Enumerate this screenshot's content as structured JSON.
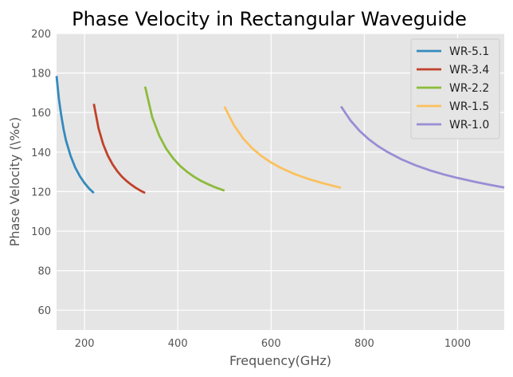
{
  "chart_data": {
    "type": "line",
    "title": "Phase Velocity in Rectangular Waveguide",
    "xlabel": "Frequency(GHz)",
    "ylabel": "Phase Velocity (\\%c)",
    "xlim": [
      140,
      1100
    ],
    "ylim": [
      50,
      200
    ],
    "xticks": [
      200,
      400,
      600,
      800,
      1000
    ],
    "yticks": [
      60,
      80,
      100,
      120,
      140,
      160,
      180,
      200
    ],
    "grid": true,
    "legend_position": "top-right",
    "series": [
      {
        "name": "WR-5.1",
        "color": "#348ABD",
        "x": [
          140,
          145,
          150,
          155,
          160,
          170,
          180,
          190,
          200,
          210,
          220
        ],
        "y": [
          178.5,
          167.0,
          158.5,
          151.6,
          146.1,
          138.1,
          132.2,
          127.8,
          124.3,
          121.5,
          119.3
        ]
      },
      {
        "name": "WR-3.4",
        "color": "#C0422A",
        "x": [
          220,
          230,
          240,
          250,
          260,
          270,
          280,
          290,
          300,
          310,
          320,
          330
        ],
        "y": [
          164.4,
          152.0,
          144.0,
          138.2,
          133.8,
          130.4,
          127.6,
          125.4,
          123.5,
          121.9,
          120.5,
          119.3
        ]
      },
      {
        "name": "WR-2.2",
        "color": "#8CBB3C",
        "x": [
          330,
          345,
          360,
          375,
          390,
          405,
          420,
          435,
          450,
          465,
          480,
          500
        ],
        "y": [
          173.1,
          157.8,
          148.4,
          141.7,
          136.8,
          133.0,
          130.0,
          127.5,
          125.4,
          123.7,
          122.2,
          120.5
        ]
      },
      {
        "name": "WR-1.5",
        "color": "#FBC15E",
        "x": [
          500,
          520,
          540,
          560,
          580,
          600,
          620,
          650,
          680,
          710,
          750
        ],
        "y": [
          163.0,
          153.7,
          146.9,
          141.8,
          137.9,
          134.7,
          132.1,
          128.9,
          126.4,
          124.3,
          121.9
        ]
      },
      {
        "name": "WR-1.0",
        "color": "#988ED5",
        "x": [
          750,
          770,
          790,
          810,
          830,
          850,
          880,
          910,
          940,
          970,
          1000,
          1040,
          1070,
          1100
        ],
        "y": [
          163.1,
          156.1,
          150.7,
          146.4,
          142.9,
          140.0,
          136.3,
          133.3,
          130.8,
          128.7,
          126.9,
          124.8,
          123.4,
          122.1
        ]
      }
    ]
  }
}
